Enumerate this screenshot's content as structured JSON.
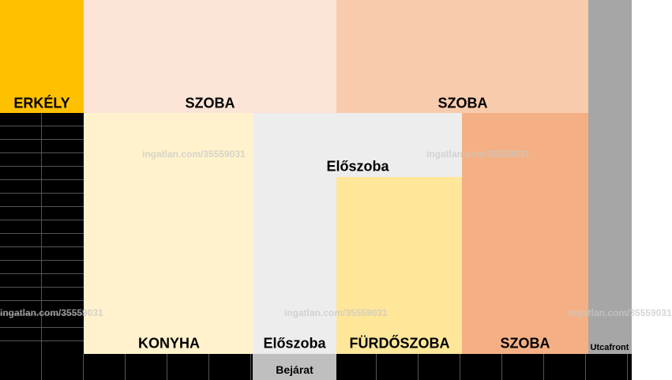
{
  "rooms": [
    {
      "label": "ERKÉLY"
    },
    {
      "label": "SZOBA"
    },
    {
      "label": "SZOBA"
    },
    {
      "label": "Előszoba"
    },
    {
      "label": "KONYHA"
    },
    {
      "label": "Előszoba"
    },
    {
      "label": "FÜRDŐSZOBA"
    },
    {
      "label": "SZOBA"
    },
    {
      "label": "Bejárat"
    },
    {
      "label": "Utcafront"
    }
  ],
  "watermarks": [
    "ingatlan.com/35559031",
    "ingatlan.com/35559031",
    "ingatlan.com/35559031",
    "ingatlan.com/35559031",
    "ingatlan.com/35559031"
  ]
}
